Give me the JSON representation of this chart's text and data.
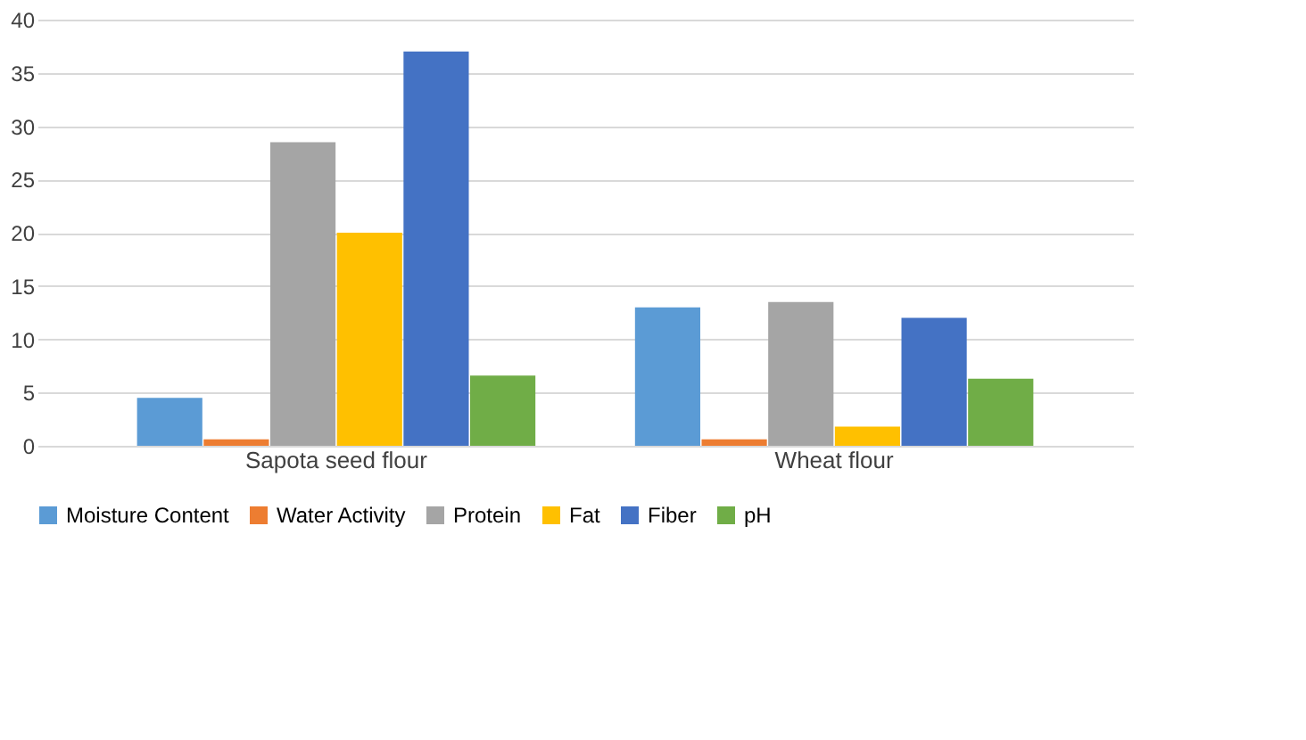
{
  "chart_data": {
    "type": "bar",
    "categories": [
      "Sapota seed flour",
      "Wheat flour"
    ],
    "series": [
      {
        "name": "Moisture Content",
        "color": "#5b9bd5",
        "values": [
          4.5,
          13
        ]
      },
      {
        "name": "Water Activity",
        "color": "#ed7d31",
        "values": [
          0.6,
          0.6
        ]
      },
      {
        "name": "Protein",
        "color": "#a5a5a5",
        "values": [
          28.5,
          13.5
        ]
      },
      {
        "name": "Fat",
        "color": "#ffc000",
        "values": [
          20,
          1.8
        ]
      },
      {
        "name": "Fiber",
        "color": "#4472c4",
        "values": [
          37,
          12
        ]
      },
      {
        "name": "pH",
        "color": "#70ad47",
        "values": [
          6.6,
          6.3
        ]
      }
    ],
    "ylim": [
      0,
      40
    ],
    "yticks": [
      0,
      5,
      10,
      15,
      20,
      25,
      30,
      35,
      40
    ],
    "grid": "y",
    "legend": "bottom"
  }
}
